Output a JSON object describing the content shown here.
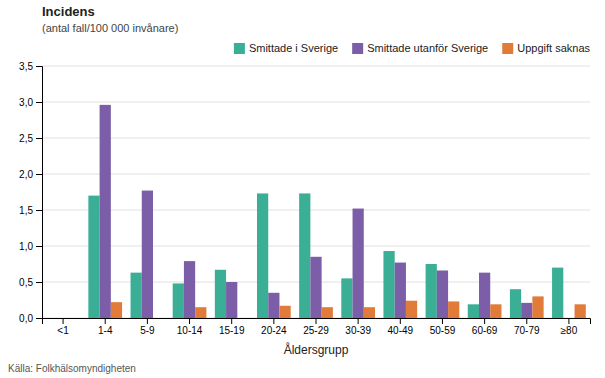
{
  "chart_data": {
    "type": "bar",
    "title": "Incidens",
    "subtitle": "(antal fall/100 000 invånare)",
    "xlabel": "Åldersgrupp",
    "annotations": [
      "Källa: Folkhälsomyndigheten"
    ],
    "categories": [
      "<1",
      "1-4",
      "5-9",
      "10-14",
      "15-19",
      "20-24",
      "25-29",
      "30-39",
      "40-49",
      "50-59",
      "60-69",
      "70-79",
      "≥80"
    ],
    "series": [
      {
        "name": "Smittade i Sverige",
        "color": "#3aaf96",
        "values": [
          0.0,
          1.7,
          0.63,
          0.48,
          0.67,
          1.73,
          1.73,
          0.55,
          0.93,
          0.75,
          0.19,
          0.4,
          0.7
        ]
      },
      {
        "name": "Smittade utanför Sverige",
        "color": "#7b5ea7",
        "values": [
          0.0,
          2.96,
          1.77,
          0.79,
          0.5,
          0.35,
          0.85,
          1.52,
          0.77,
          0.66,
          0.63,
          0.21,
          0.0
        ]
      },
      {
        "name": "Uppgift saknas",
        "color": "#e07b39",
        "values": [
          0.0,
          0.22,
          0.0,
          0.15,
          0.0,
          0.17,
          0.15,
          0.15,
          0.24,
          0.23,
          0.19,
          0.3,
          0.19
        ]
      }
    ],
    "ylim": [
      0,
      3.5
    ],
    "yticks": [
      {
        "value": 0.0,
        "label": "0,0"
      },
      {
        "value": 0.5,
        "label": "0,5"
      },
      {
        "value": 1.0,
        "label": "1,0"
      },
      {
        "value": 1.5,
        "label": "1,5"
      },
      {
        "value": 2.0,
        "label": "2,0"
      },
      {
        "value": 2.5,
        "label": "2,5"
      },
      {
        "value": 3.0,
        "label": "3,0"
      },
      {
        "value": 3.5,
        "label": "3,5"
      }
    ],
    "grid": true,
    "legend": "top"
  }
}
